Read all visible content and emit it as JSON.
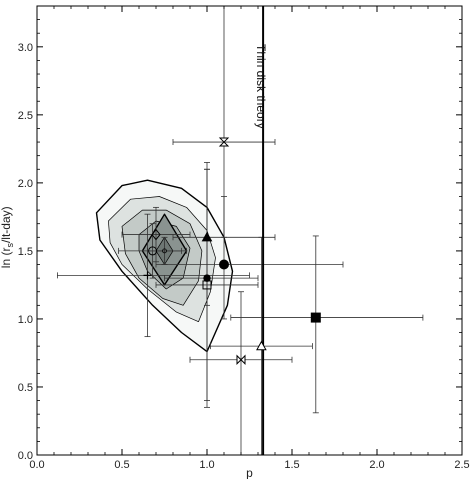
{
  "chart_data": {
    "type": "scatter",
    "title": "",
    "xlabel": "p",
    "ylabel_parts": [
      "ln (r",
      "s",
      "/lt-day)"
    ],
    "xlim": [
      0.0,
      2.5
    ],
    "ylim": [
      0.0,
      3.3
    ],
    "xticks": [
      0.0,
      0.5,
      1.0,
      1.5,
      2.0,
      2.5
    ],
    "xtick_labels": [
      "0.0",
      "0.5",
      "1.0",
      "1.5",
      "2.0",
      "2.5"
    ],
    "yticks": [
      0.0,
      0.5,
      1.0,
      1.5,
      2.0,
      2.5,
      3.0
    ],
    "ytick_labels": [
      "0.0",
      "0.5",
      "1.0",
      "1.5",
      "2.0",
      "2.5",
      "3.0"
    ],
    "grid": false,
    "reference_line": {
      "x": 1.33,
      "label": "Thin disk theory"
    },
    "contours": [
      {
        "level": 1,
        "fill": "#f6f8f7",
        "points": [
          [
            0.35,
            1.78
          ],
          [
            0.5,
            1.98
          ],
          [
            0.65,
            2.02
          ],
          [
            0.85,
            1.96
          ],
          [
            1.0,
            1.82
          ],
          [
            1.1,
            1.6
          ],
          [
            1.15,
            1.35
          ],
          [
            1.12,
            1.1
          ],
          [
            1.0,
            0.76
          ],
          [
            0.85,
            0.9
          ],
          [
            0.68,
            1.1
          ],
          [
            0.5,
            1.35
          ],
          [
            0.37,
            1.58
          ]
        ]
      },
      {
        "level": 2,
        "fill": "#dde2e0",
        "points": [
          [
            0.42,
            1.72
          ],
          [
            0.55,
            1.88
          ],
          [
            0.72,
            1.9
          ],
          [
            0.88,
            1.82
          ],
          [
            1.0,
            1.65
          ],
          [
            1.05,
            1.45
          ],
          [
            1.02,
            1.2
          ],
          [
            0.95,
            0.98
          ],
          [
            0.82,
            1.05
          ],
          [
            0.65,
            1.22
          ],
          [
            0.5,
            1.4
          ],
          [
            0.43,
            1.56
          ]
        ]
      },
      {
        "level": 3,
        "fill": "#c3cac7",
        "points": [
          [
            0.5,
            1.68
          ],
          [
            0.62,
            1.8
          ],
          [
            0.76,
            1.8
          ],
          [
            0.9,
            1.7
          ],
          [
            0.97,
            1.5
          ],
          [
            0.95,
            1.28
          ],
          [
            0.86,
            1.1
          ],
          [
            0.74,
            1.15
          ],
          [
            0.6,
            1.3
          ],
          [
            0.52,
            1.48
          ]
        ]
      },
      {
        "level": 4,
        "fill": "#a6aeab",
        "points": [
          [
            0.6,
            1.62
          ],
          [
            0.7,
            1.72
          ],
          [
            0.82,
            1.68
          ],
          [
            0.9,
            1.52
          ],
          [
            0.86,
            1.3
          ],
          [
            0.76,
            1.22
          ],
          [
            0.65,
            1.35
          ],
          [
            0.6,
            1.5
          ]
        ]
      },
      {
        "level": 5,
        "fill": "#8a9390",
        "points": [
          [
            0.75,
            1.77
          ],
          [
            0.88,
            1.5
          ],
          [
            0.75,
            1.25
          ],
          [
            0.62,
            1.5
          ]
        ]
      },
      {
        "level": 6,
        "fill": "#6e7774",
        "points": [
          [
            0.75,
            1.6
          ],
          [
            0.8,
            1.5
          ],
          [
            0.75,
            1.4
          ],
          [
            0.7,
            1.5
          ]
        ]
      }
    ],
    "points": [
      {
        "marker": "bowtie-v",
        "x": 1.1,
        "y": 2.3,
        "xerr": [
          0.3,
          0.3
        ],
        "yerr": [
          0.7,
          1.0
        ]
      },
      {
        "marker": "triangle-filled",
        "x": 1.0,
        "y": 1.6,
        "xerr": [
          0.2,
          0.4
        ],
        "yerr": [
          0.5,
          0.5
        ]
      },
      {
        "marker": "circle-filled",
        "x": 1.1,
        "y": 1.4,
        "xerr": [
          0.4,
          0.7
        ],
        "yerr": [
          0.4,
          0.5
        ]
      },
      {
        "marker": "dot-filled",
        "x": 1.0,
        "y": 1.3,
        "xerr": [
          0.25,
          0.3
        ],
        "yerr": [
          0.9,
          0.8
        ]
      },
      {
        "marker": "square-open",
        "x": 1.0,
        "y": 1.25,
        "xerr": [
          0.3,
          0.3
        ],
        "yerr": [
          0.9,
          0.9
        ]
      },
      {
        "marker": "diamond-open",
        "x": 0.7,
        "y": 1.62,
        "xerr": [
          0.2,
          0.2
        ],
        "yerr": [
          0.2,
          0.2
        ]
      },
      {
        "marker": "circle-open",
        "x": 0.68,
        "y": 1.5,
        "xerr": [
          0.2,
          0.2
        ],
        "yerr": [
          0.2,
          0.2
        ]
      },
      {
        "marker": "plus",
        "x": 0.65,
        "y": 1.32,
        "xerr": [
          0.53,
          0.6
        ],
        "yerr": [
          0.45,
          0.45
        ]
      },
      {
        "marker": "circle-small",
        "x": 0.75,
        "y": 1.5,
        "xerr": [
          0.1,
          0.1
        ],
        "yerr": [
          0.1,
          0.1
        ]
      },
      {
        "marker": "square-filled",
        "x": 1.64,
        "y": 1.01,
        "xerr": [
          0.5,
          0.63
        ],
        "yerr": [
          0.7,
          0.6
        ]
      },
      {
        "marker": "triangle-open",
        "x": 1.32,
        "y": 0.8,
        "xerr": [
          0.3,
          0.3
        ],
        "yerr": [
          0.8,
          0.8
        ]
      },
      {
        "marker": "bowtie-h",
        "x": 1.2,
        "y": 0.7,
        "xerr": [
          0.3,
          0.3
        ],
        "yerr": [
          0.7,
          0.5
        ]
      }
    ]
  }
}
